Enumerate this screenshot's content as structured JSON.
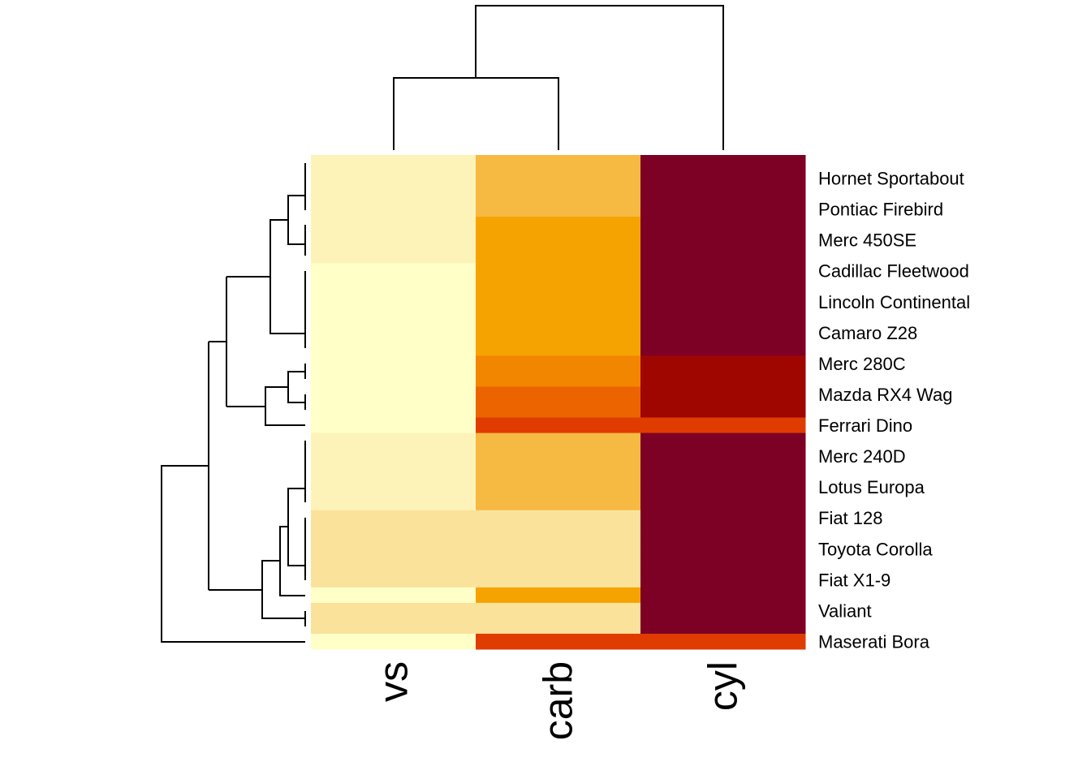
{
  "chart_data": {
    "type": "heatmap",
    "columns": [
      "vs",
      "carb",
      "cyl"
    ],
    "row_labels_visible": [
      "Hornet Sportabout",
      "Pontiac Firebird",
      "Merc 450SE",
      "Cadillac Fleetwood",
      "Lincoln Continental",
      "Camaro Z28",
      "Merc 280C",
      "Mazda RX4 Wag",
      "Ferrari Dino",
      "Merc 240D",
      "Lotus Europa",
      "Fiat 128",
      "Toyota Corolla",
      "Fiat X1-9",
      "Valiant",
      "Maserati Bora"
    ],
    "row_count": 32,
    "labels_shown_every": 2,
    "palette": [
      "#FFFFC8",
      "#FDF3B9",
      "#FAE29B",
      "#F6B941",
      "#F5A300",
      "#F38600",
      "#EC6400",
      "#E03C00",
      "#A00600",
      "#7D0025"
    ],
    "color_scale_note_levels": "0 = lightest, 9 = darkest",
    "matrix": [
      [
        1,
        3,
        9
      ],
      [
        1,
        3,
        9
      ],
      [
        1,
        3,
        9
      ],
      [
        1,
        3,
        9
      ],
      [
        1,
        4,
        9
      ],
      [
        1,
        4,
        9
      ],
      [
        1,
        4,
        9
      ],
      [
        0,
        4,
        9
      ],
      [
        0,
        4,
        9
      ],
      [
        0,
        4,
        9
      ],
      [
        0,
        4,
        9
      ],
      [
        0,
        4,
        9
      ],
      [
        0,
        4,
        9
      ],
      [
        0,
        5,
        8
      ],
      [
        0,
        5,
        8
      ],
      [
        0,
        6,
        8
      ],
      [
        0,
        6,
        8
      ],
      [
        0,
        7,
        7
      ],
      [
        1,
        3,
        9
      ],
      [
        1,
        3,
        9
      ],
      [
        1,
        3,
        9
      ],
      [
        1,
        3,
        9
      ],
      [
        1,
        3,
        9
      ],
      [
        2,
        2,
        9
      ],
      [
        2,
        2,
        9
      ],
      [
        2,
        2,
        9
      ],
      [
        2,
        2,
        9
      ],
      [
        2,
        2,
        9
      ],
      [
        0,
        4,
        9
      ],
      [
        2,
        2,
        9
      ],
      [
        2,
        2,
        9
      ],
      [
        0,
        7,
        7
      ]
    ],
    "row_dendrogram": true,
    "column_dendrogram": true
  }
}
